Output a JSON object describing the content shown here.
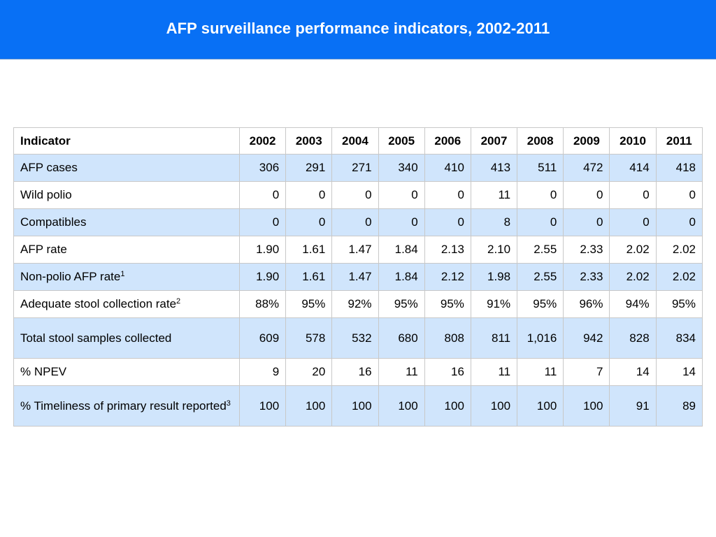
{
  "slide": {
    "title": "AFP surveillance performance indicators, 2002-2011"
  },
  "table": {
    "header": {
      "label": "Indicator",
      "years": [
        "2002",
        "2003",
        "2004",
        "2005",
        "2006",
        "2007",
        "2008",
        "2009",
        "2010",
        "2011"
      ]
    },
    "rows": [
      {
        "label": "AFP cases",
        "footnote": "",
        "values": [
          "306",
          "291",
          "271",
          "340",
          "410",
          "413",
          "511",
          "472",
          "414",
          "418"
        ]
      },
      {
        "label": "Wild polio",
        "footnote": "",
        "values": [
          "0",
          "0",
          "0",
          "0",
          "0",
          "11",
          "0",
          "0",
          "0",
          "0"
        ]
      },
      {
        "label": "Compatibles",
        "footnote": "",
        "values": [
          "0",
          "0",
          "0",
          "0",
          "0",
          "8",
          "0",
          "0",
          "0",
          "0"
        ]
      },
      {
        "label": "AFP rate",
        "footnote": "",
        "values": [
          "1.90",
          "1.61",
          "1.47",
          "1.84",
          "2.13",
          "2.10",
          "2.55",
          "2.33",
          "2.02",
          "2.02"
        ]
      },
      {
        "label": "Non-polio AFP rate",
        "footnote": "1",
        "values": [
          "1.90",
          "1.61",
          "1.47",
          "1.84",
          "2.12",
          "1.98",
          "2.55",
          "2.33",
          "2.02",
          "2.02"
        ]
      },
      {
        "label": "Adequate stool collection rate",
        "footnote": "2",
        "values": [
          "88%",
          "95%",
          "92%",
          "95%",
          "95%",
          "91%",
          "95%",
          "96%",
          "94%",
          "95%"
        ]
      },
      {
        "label": "Total stool samples collected",
        "footnote": "",
        "values": [
          "609",
          "578",
          "532",
          "680",
          "808",
          "811",
          "1,016",
          "942",
          "828",
          "834"
        ]
      },
      {
        "label": "% NPEV",
        "footnote": "",
        "values": [
          "9",
          "20",
          "16",
          "11",
          "16",
          "11",
          "11",
          "7",
          "14",
          "14"
        ]
      },
      {
        "label": "% Timeliness of primary result reported",
        "footnote": "3",
        "values": [
          "100",
          "100",
          "100",
          "100",
          "100",
          "100",
          "100",
          "100",
          "91",
          "89"
        ]
      }
    ]
  },
  "colors": {
    "title_bar": "#0870f5",
    "row_shade": "#d0e5fc",
    "border": "#c8c8c8"
  }
}
